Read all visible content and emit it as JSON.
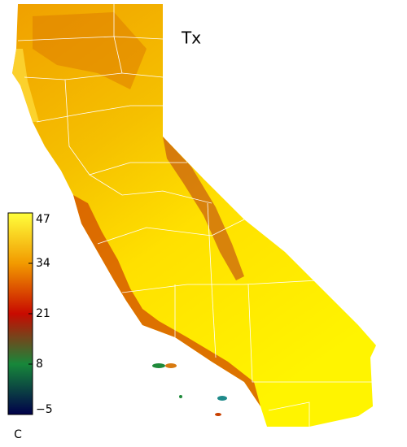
{
  "title": "Tx",
  "colorbar": {
    "lim": [
      -5,
      47
    ],
    "ticks": [
      47,
      34,
      21,
      8,
      {
        "value": -5,
        "label": "−5"
      }
    ],
    "unit": "C",
    "colors": [
      "#00004a",
      "#17873a",
      "#c80a00",
      "#f29a00",
      "#ffff3c"
    ]
  }
}
